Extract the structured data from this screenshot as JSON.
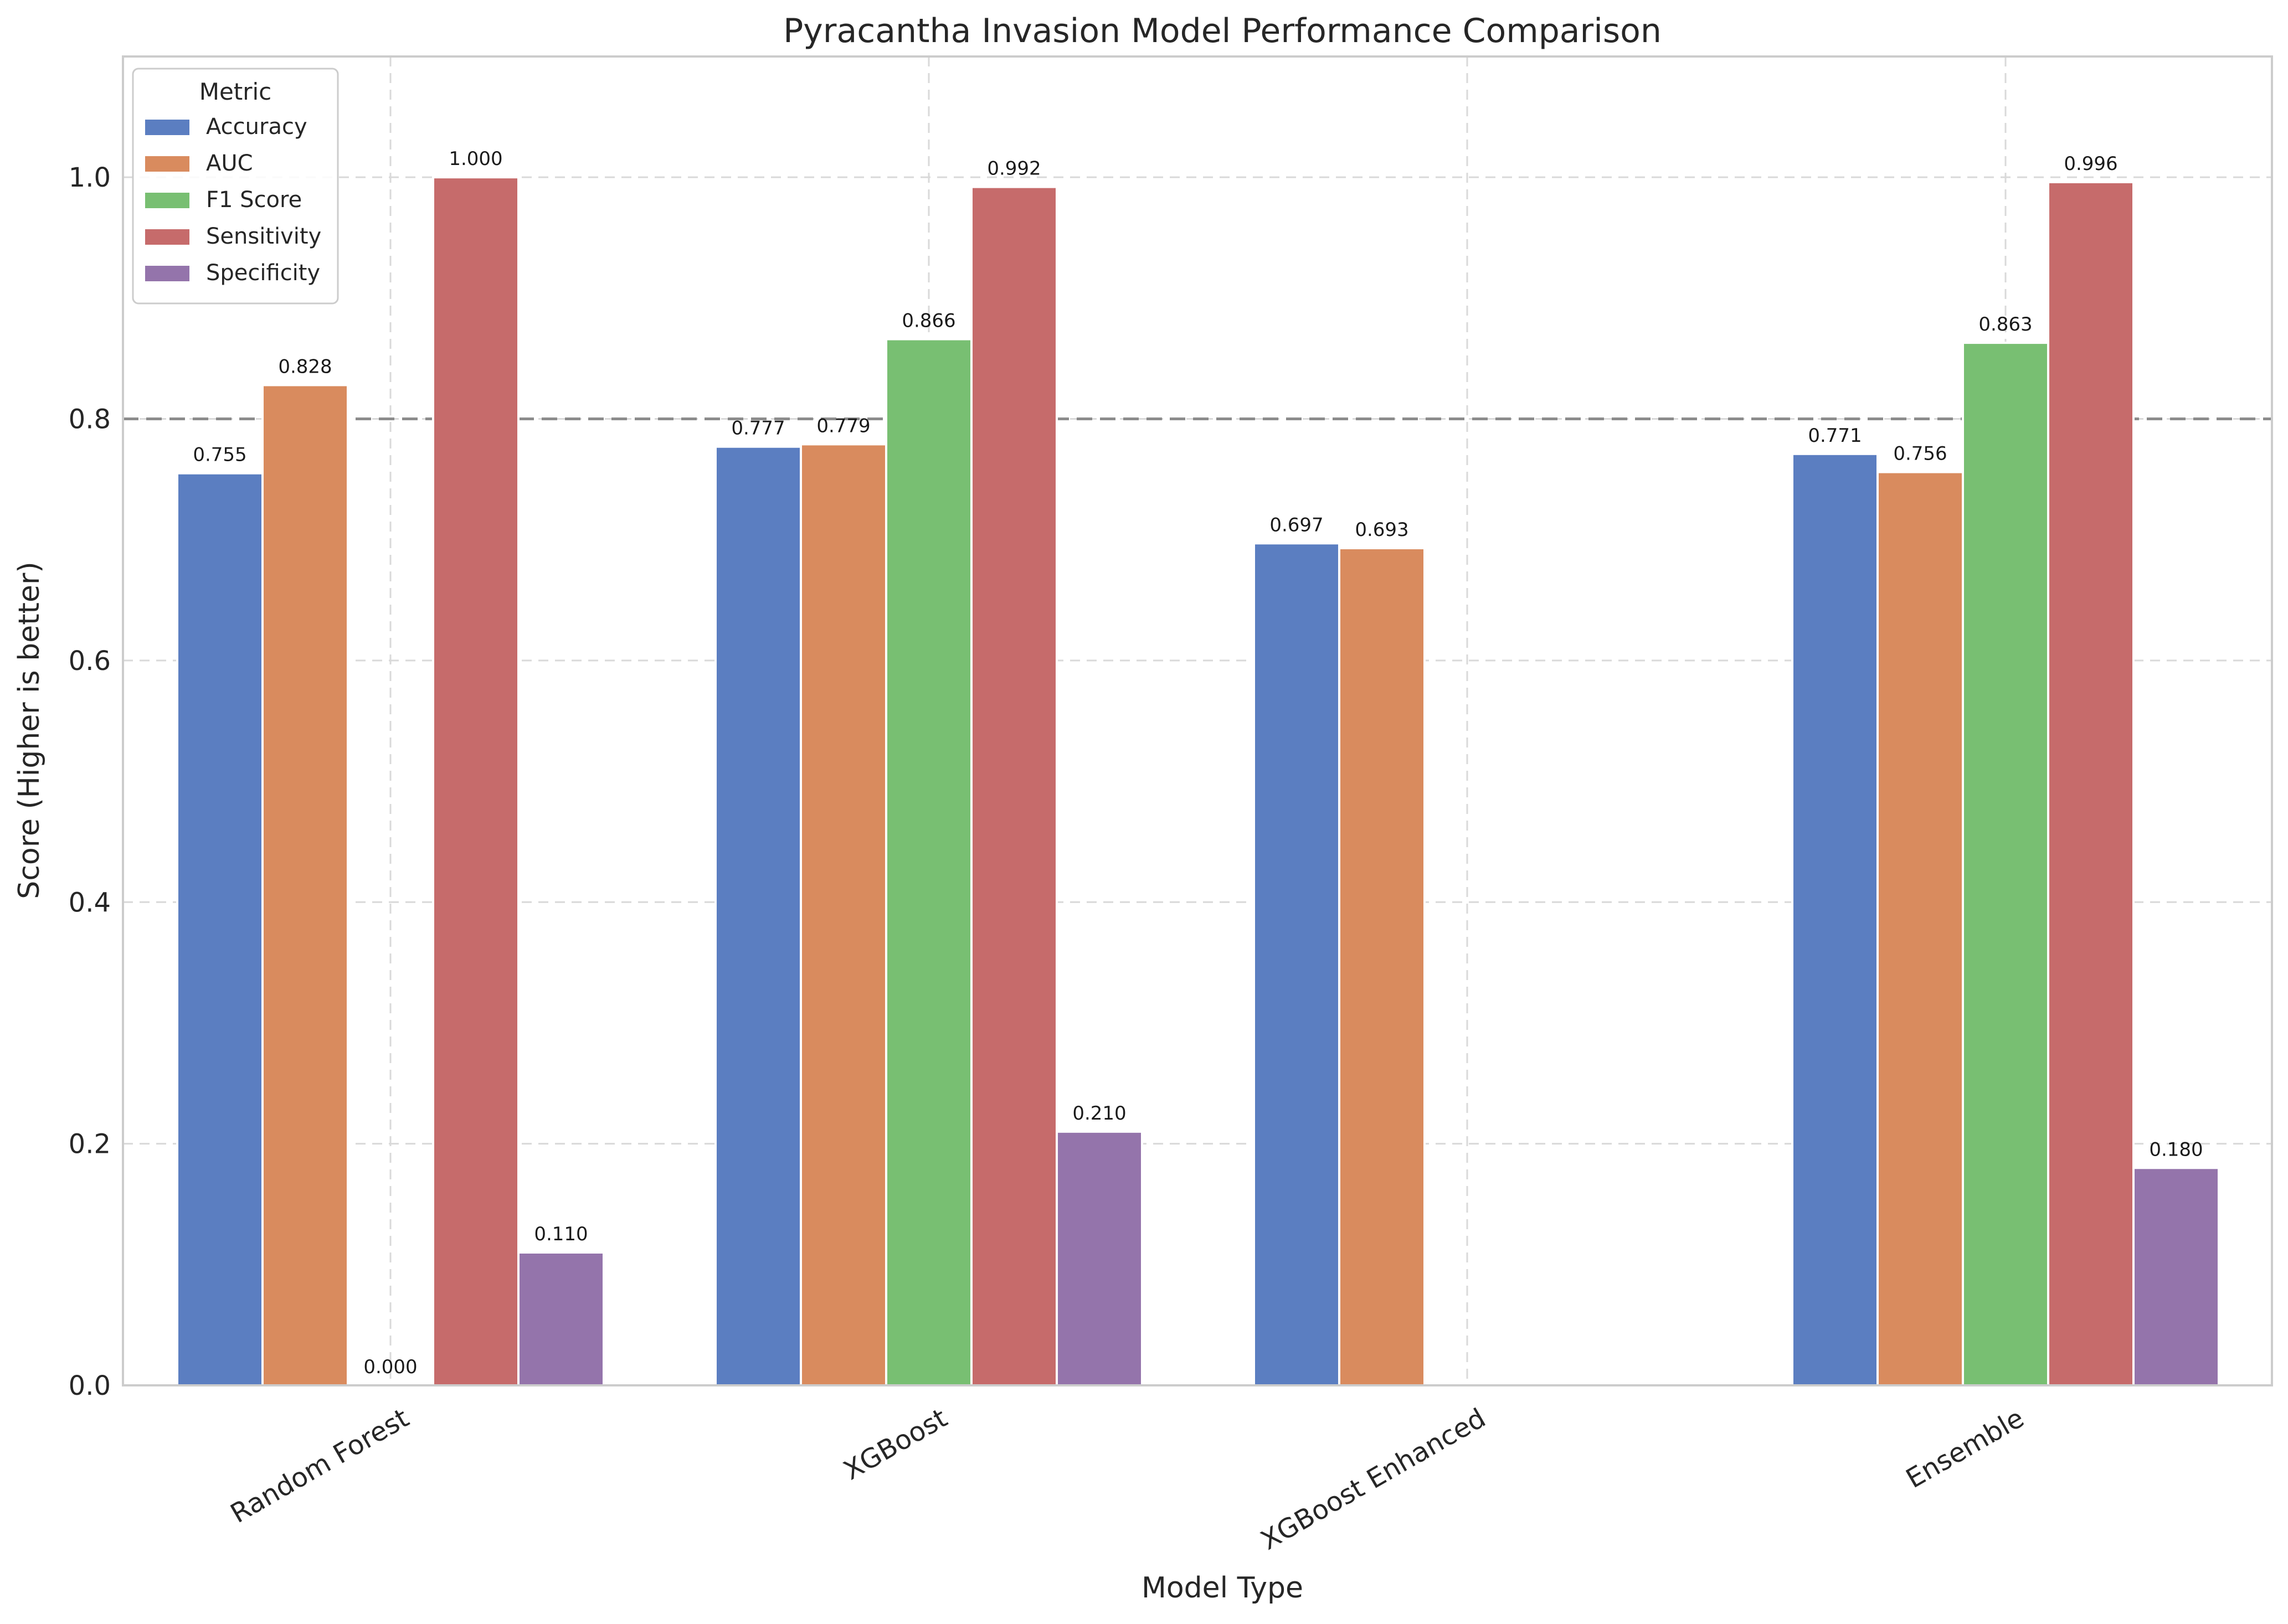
{
  "chart_data": {
    "type": "bar",
    "title": "Pyracantha Invasion Model Performance Comparison",
    "xlabel": "Model Type",
    "ylabel": "Score (Higher is better)",
    "ylim": [
      0,
      1.1
    ],
    "yticks": [
      0.0,
      0.2,
      0.4,
      0.6,
      0.8,
      1.0
    ],
    "ytick_labels": [
      "0.0",
      "0.2",
      "0.4",
      "0.6",
      "0.8",
      "1.0"
    ],
    "reference_line": 0.8,
    "grid": true,
    "legend": {
      "title": "Metric",
      "placement": "top-left"
    },
    "categories": [
      "Random Forest",
      "XGBoost",
      "XGBoost Enhanced",
      "Ensemble"
    ],
    "series": [
      {
        "name": "Accuracy",
        "color": "#5b7ec1",
        "values": [
          0.755,
          0.777,
          0.697,
          0.771
        ],
        "labels": [
          "0.755",
          "0.777",
          "0.697",
          "0.771"
        ]
      },
      {
        "name": "AUC",
        "color": "#d98b5e",
        "values": [
          0.828,
          0.779,
          0.693,
          0.756
        ],
        "labels": [
          "0.828",
          "0.779",
          "0.693",
          "0.756"
        ]
      },
      {
        "name": "F1 Score",
        "color": "#78bf72",
        "values": [
          0.0,
          0.866,
          null,
          0.863
        ],
        "labels": [
          "0.000",
          "0.866",
          null,
          "0.863"
        ]
      },
      {
        "name": "Sensitivity",
        "color": "#c66b6b",
        "values": [
          1.0,
          0.992,
          null,
          0.996
        ],
        "labels": [
          "1.000",
          "0.992",
          null,
          "0.996"
        ]
      },
      {
        "name": "Specificity",
        "color": "#9474ab",
        "values": [
          0.11,
          0.21,
          null,
          0.18
        ],
        "labels": [
          "0.110",
          "0.210",
          null,
          "0.180"
        ]
      }
    ]
  }
}
